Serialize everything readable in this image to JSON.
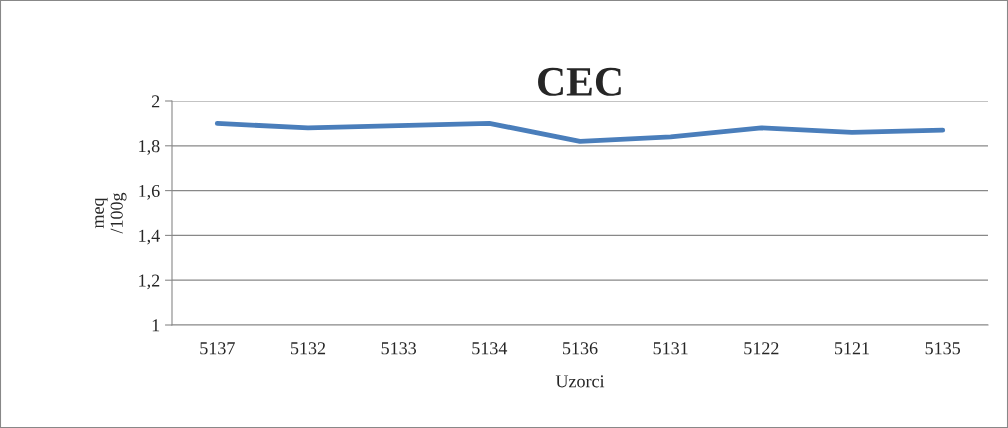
{
  "chart_data": {
    "type": "line",
    "title": "CEC",
    "xlabel": "Uzorci",
    "ylabel": "meq\n/100g",
    "categories": [
      "5137",
      "5132",
      "5133",
      "5134",
      "5136",
      "5131",
      "5122",
      "5121",
      "5135"
    ],
    "series": [
      {
        "color": "#4a7ebb",
        "values": [
          1.9,
          1.88,
          1.89,
          1.9,
          1.82,
          1.84,
          1.88,
          1.86,
          1.87
        ]
      }
    ],
    "ylim": [
      1,
      2
    ],
    "yticks": [
      1,
      {
        "value": 1.2,
        "label": "1,2"
      },
      {
        "value": 1.4,
        "label": "1,4"
      },
      {
        "value": 1.6,
        "label": "1,6"
      },
      {
        "value": 1.8,
        "label": "1,8"
      },
      2
    ],
    "grid": "y",
    "marker": "none",
    "line_style": "solid"
  }
}
